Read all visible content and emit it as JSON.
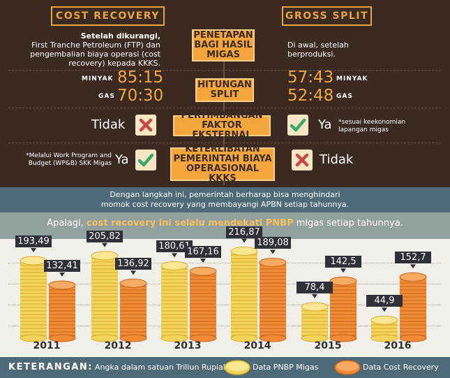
{
  "header": {
    "left_title": "COST RECOVERY",
    "right_title": "GROSS SPLIT"
  },
  "rows": {
    "sharing": {
      "label": "PENETAPAN BAGI HASIL MIGAS",
      "left_text": "Setelah dikurangi, First Tranche Petroleum (FTP) dan pengembalian biaya operasi (cost recovery) kepada KKKS.",
      "left_bold": "Setelah dikurangi,",
      "left_rest": "First Tranche Petroleum (FTP) dan pengembalian biaya operasi (cost recovery) kepada KKKS.",
      "right_text": "Di awal, setelah berproduksi."
    },
    "split": {
      "label": "HITUNGAN SPLIT",
      "oil_label": "MINYAK",
      "gas_label": "GAS",
      "left_oil": "85:15",
      "left_gas": "70:30",
      "right_oil": "57:43",
      "right_gas": "52:48"
    },
    "external": {
      "label": "PERTIMBANGAN FAKTOR EKSTERNAL",
      "left_word": "Tidak",
      "right_word": "Ya",
      "right_note": "*sesuai keekonomian lapangan migas"
    },
    "involvement": {
      "label": "KETERLIBATAN PEMERINTAH BIAYA OPERASIONAL KKKS",
      "left_note": "*Melalui Work Program and Budget (WP&B) SKK Migas",
      "left_word": "Ya",
      "right_word": "Tidak"
    }
  },
  "band_text": "Dengan langkah ini, pemerintah berharap bisa menghindari momok cost recovery yang membayangi APBN setiap tahunnya.",
  "chart_title": {
    "prefix": "Apalagi, ",
    "highlight": "cost recovery ini selalu mendekati PNBP",
    "suffix": " migas setiap tahunnya."
  },
  "colors": {
    "dark_brown": "#3b2a22",
    "orange": "#f4a63c",
    "gold_coin": "#f3d45a",
    "orange_coin": "#f08a35",
    "green_check": "#3aa86b",
    "red_cross": "#c8474a",
    "slate": "#4e6a78"
  },
  "chart_data": {
    "type": "bar",
    "categories": [
      "2011",
      "2012",
      "2013",
      "2014",
      "2015",
      "2016"
    ],
    "series": [
      {
        "name": "Data PNBP Migas",
        "values": [
          193.49,
          205.82,
          180.61,
          216.87,
          78.4,
          44.9
        ],
        "labels": [
          "193,49",
          "205,82",
          "180,61",
          "216,87",
          "78,4",
          "44,9"
        ]
      },
      {
        "name": "Data Cost Recovery",
        "values": [
          132.41,
          136.92,
          167.16,
          189.08,
          142.5,
          152.7
        ],
        "labels": [
          "132,41",
          "136,92",
          "167,16",
          "189,08",
          "142,5",
          "152,7"
        ]
      }
    ],
    "ylim": [
      0,
      230
    ]
  },
  "footer": {
    "title": "KETERANGAN:",
    "unit_note": "Angka dalam satuan Triliun Rupiah",
    "legend_pnbp": "Data PNBP Migas",
    "legend_cr": "Data Cost Recovery"
  }
}
